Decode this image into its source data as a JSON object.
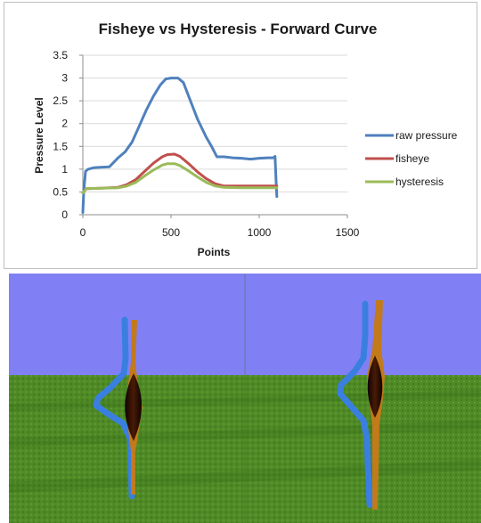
{
  "chart_data": {
    "type": "line",
    "title": "Fisheye vs Hysteresis - Forward Curve",
    "xlabel": "Points",
    "ylabel": "Pressure Level",
    "xlim": [
      0,
      1500
    ],
    "ylim": [
      0,
      3.5
    ],
    "xticks": [
      0,
      500,
      1000,
      1500
    ],
    "yticks": [
      0,
      0.5,
      1,
      1.5,
      2,
      2.5,
      3,
      3.5
    ],
    "xtick_labels": [
      "0",
      "500",
      "1000",
      "1500"
    ],
    "ytick_labels": [
      "0",
      "0.5",
      "1",
      "1.5",
      "2",
      "2.5",
      "3",
      "3.5"
    ],
    "grid": "horizontal",
    "legend_position": "right",
    "series": [
      {
        "name": "raw pressure",
        "color": "#4f81bd",
        "x": [
          0,
          5,
          15,
          30,
          60,
          100,
          150,
          175,
          200,
          240,
          280,
          320,
          360,
          400,
          440,
          470,
          500,
          540,
          570,
          600,
          650,
          700,
          730,
          760,
          800,
          850,
          900,
          950,
          1000,
          1050,
          1080,
          1090,
          1095,
          1100
        ],
        "y": [
          0.05,
          0.5,
          0.95,
          1.0,
          1.03,
          1.04,
          1.05,
          1.15,
          1.25,
          1.38,
          1.6,
          1.95,
          2.3,
          2.6,
          2.85,
          2.98,
          3.0,
          3.0,
          2.9,
          2.6,
          2.1,
          1.7,
          1.5,
          1.27,
          1.27,
          1.25,
          1.24,
          1.22,
          1.24,
          1.25,
          1.25,
          1.28,
          0.8,
          0.4
        ]
      },
      {
        "name": "fisheye",
        "color": "#c0504d",
        "x": [
          0,
          20,
          100,
          200,
          250,
          300,
          350,
          400,
          450,
          480,
          520,
          550,
          600,
          650,
          700,
          750,
          800,
          900,
          1000,
          1100
        ],
        "y": [
          0.48,
          0.57,
          0.58,
          0.6,
          0.66,
          0.77,
          0.95,
          1.13,
          1.27,
          1.32,
          1.33,
          1.28,
          1.12,
          0.94,
          0.79,
          0.68,
          0.63,
          0.63,
          0.63,
          0.63
        ]
      },
      {
        "name": "hysteresis",
        "color": "#9bbb59",
        "x": [
          0,
          20,
          100,
          200,
          250,
          300,
          350,
          400,
          450,
          480,
          520,
          550,
          600,
          650,
          700,
          750,
          800,
          900,
          1000,
          1100
        ],
        "y": [
          0.48,
          0.57,
          0.58,
          0.59,
          0.63,
          0.71,
          0.85,
          0.98,
          1.09,
          1.12,
          1.12,
          1.08,
          0.96,
          0.83,
          0.71,
          0.63,
          0.6,
          0.59,
          0.59,
          0.59
        ]
      }
    ]
  },
  "scene": {
    "sky_color": "#8080f4",
    "ground_color": "#4f8a26",
    "curve_colors": [
      "#3a7fe0",
      "#c27a1a",
      "#2a0d03"
    ]
  }
}
